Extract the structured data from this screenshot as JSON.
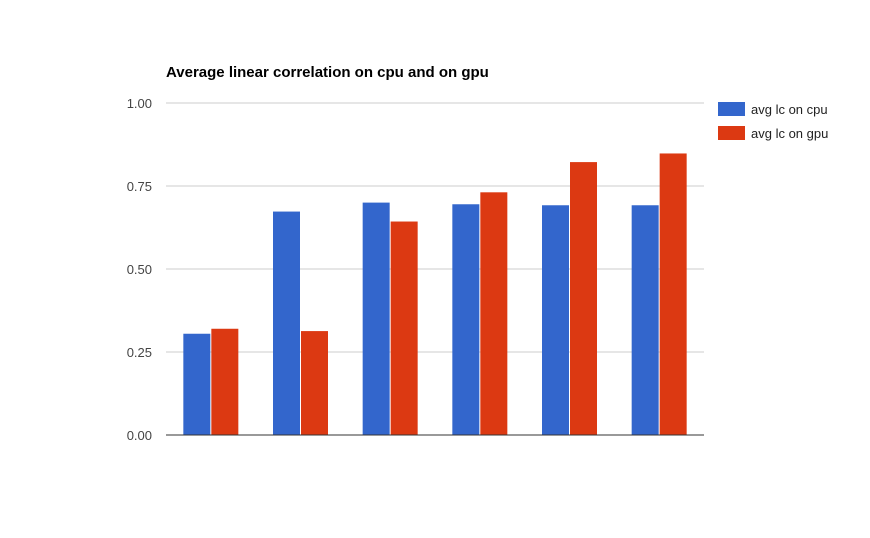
{
  "chart_data": {
    "type": "bar",
    "title": "Average linear correlation on cpu and on gpu",
    "xlabel": "",
    "ylabel": "",
    "categories": [
      "",
      "",
      "",
      "",
      "",
      ""
    ],
    "series": [
      {
        "name": "avg lc on cpu",
        "color": "#3366cc",
        "values": [
          0.305,
          0.673,
          0.7,
          0.695,
          0.692,
          0.692
        ]
      },
      {
        "name": "avg lc on gpu",
        "color": "#dc3912",
        "values": [
          0.32,
          0.313,
          0.643,
          0.731,
          0.822,
          0.848
        ]
      }
    ],
    "ylim": [
      0,
      1
    ],
    "yticks": [
      "0.00",
      "0.25",
      "0.50",
      "0.75",
      "1.00"
    ],
    "grid": true,
    "legend_position": "right"
  }
}
